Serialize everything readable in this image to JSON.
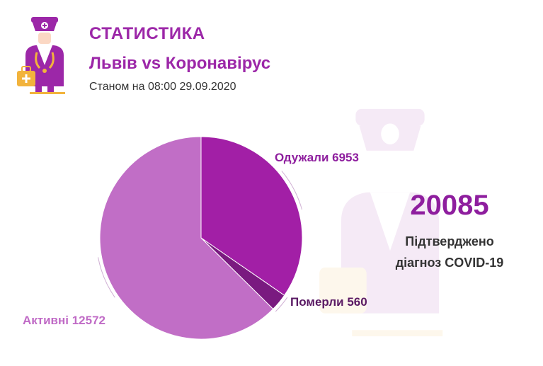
{
  "header": {
    "title": "СТАТИСТИКА",
    "subtitle": "Львів vs Коронавірус",
    "date": "Станом на 08:00 29.09.2020"
  },
  "summary": {
    "total": "20085",
    "caption_line1": "Підтверджено",
    "caption_line2": "діагноз COVID-19"
  },
  "colors": {
    "accent": "#9c27a8",
    "recovered": "#a21fa6",
    "died": "#7a1a80",
    "active": "#c16ec6",
    "active_label": "#c06bc6",
    "recovered_label": "#8e1e9e",
    "died_label": "#5a1a64"
  },
  "logo_icon": "doctor-icon",
  "chart_data": {
    "type": "pie",
    "title": "",
    "categories": [
      "Одужали",
      "Померли",
      "Активні"
    ],
    "values": [
      6953,
      560,
      12572
    ],
    "labels": [
      "Одужали 6953",
      "Померли 560",
      "Активні 12572"
    ],
    "start_angle_deg": 0,
    "direction": "clockwise"
  }
}
